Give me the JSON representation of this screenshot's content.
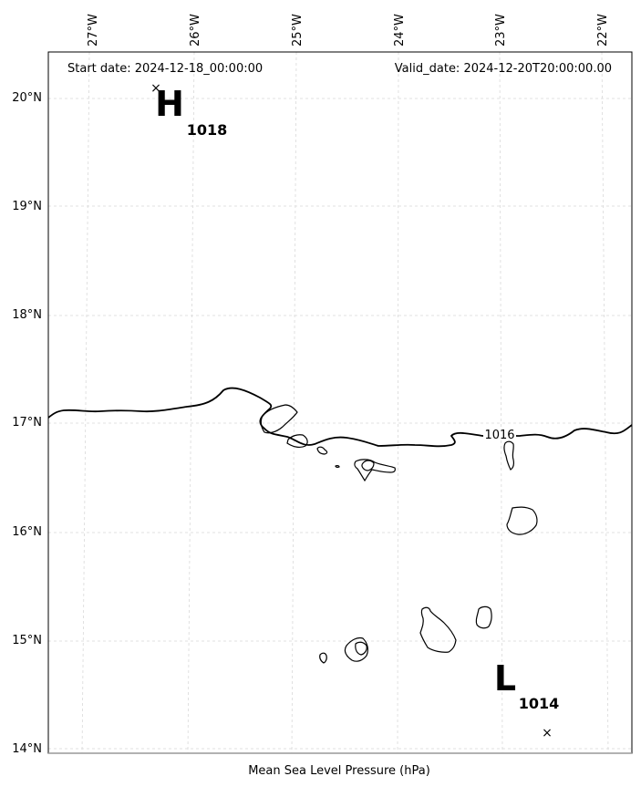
{
  "header": {
    "start_date": "Start date: 2024-12-18_00:00:00",
    "valid_date": "Valid_date: 2024-12-20T20:00:00.00"
  },
  "footer": {
    "xlabel": "Mean Sea Level Pressure (hPa)"
  },
  "map": {
    "lon_labels": [
      "27°W",
      "26°W",
      "25°W",
      "24°W",
      "23°W",
      "22°W"
    ],
    "lat_labels": [
      "20°N",
      "19°N",
      "18°N",
      "17°N",
      "16°N",
      "15°N",
      "14°N"
    ],
    "isobar_label": "1016",
    "pressure_centers": [
      {
        "type": "high",
        "letter": "H",
        "value": "1018"
      },
      {
        "type": "low",
        "letter": "L",
        "value": "1014"
      }
    ]
  }
}
